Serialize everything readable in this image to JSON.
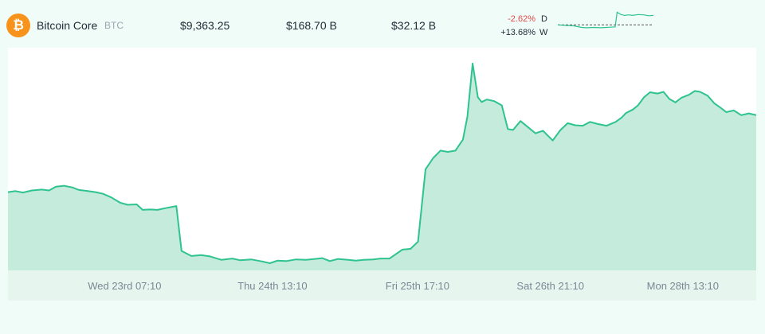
{
  "coin": {
    "name": "Bitcoin Core",
    "symbol": "BTC",
    "icon": "bitcoin-icon",
    "icon_glyph": "₿",
    "icon_color": "#f7931a"
  },
  "stats": {
    "price": "$9,363.25",
    "market_cap": "$168.70 B",
    "volume": "$32.12 B"
  },
  "changes": {
    "day_value": "-2.62%",
    "day_label": "D",
    "day_color": "#e04a4a",
    "week_value": "+13.68%",
    "week_label": "W",
    "week_color": "#1f2a37"
  },
  "colors": {
    "line": "#2ec38f",
    "fill": "#c4ebdc",
    "axis_band": "#e6f6ef",
    "tick_text": "#7b8794"
  },
  "chart_data": {
    "type": "area",
    "title": "",
    "xlabel": "",
    "ylabel": "",
    "x_ticks": [
      "Wed 23rd 07:10",
      "Thu 24th 13:10",
      "Fri 25th 17:10",
      "Sat 26th 21:10",
      "Mon 28th 13:10"
    ],
    "x_tick_pos": [
      0.205,
      0.4,
      0.59,
      0.77,
      0.95
    ],
    "ylim": [
      0,
      100
    ],
    "y_axis_labels": "none",
    "grid": false,
    "points": [
      [
        0.0,
        37.0
      ],
      [
        0.01,
        37.5
      ],
      [
        0.02,
        36.8
      ],
      [
        0.032,
        37.8
      ],
      [
        0.045,
        38.2
      ],
      [
        0.055,
        37.8
      ],
      [
        0.064,
        39.6
      ],
      [
        0.075,
        40.0
      ],
      [
        0.086,
        39.2
      ],
      [
        0.095,
        38.0
      ],
      [
        0.105,
        37.6
      ],
      [
        0.117,
        37.0
      ],
      [
        0.127,
        36.2
      ],
      [
        0.138,
        34.5
      ],
      [
        0.15,
        32.0
      ],
      [
        0.16,
        31.0
      ],
      [
        0.172,
        31.2
      ],
      [
        0.18,
        28.6
      ],
      [
        0.19,
        28.8
      ],
      [
        0.2,
        28.6
      ],
      [
        0.21,
        29.4
      ],
      [
        0.225,
        30.4
      ],
      [
        0.232,
        9.2
      ],
      [
        0.245,
        6.8
      ],
      [
        0.258,
        7.2
      ],
      [
        0.27,
        6.6
      ],
      [
        0.285,
        5.0
      ],
      [
        0.3,
        5.6
      ],
      [
        0.31,
        4.8
      ],
      [
        0.325,
        5.2
      ],
      [
        0.34,
        4.2
      ],
      [
        0.35,
        3.4
      ],
      [
        0.36,
        4.6
      ],
      [
        0.372,
        4.4
      ],
      [
        0.385,
        5.2
      ],
      [
        0.398,
        5.0
      ],
      [
        0.41,
        5.4
      ],
      [
        0.42,
        5.8
      ],
      [
        0.43,
        4.4
      ],
      [
        0.441,
        5.4
      ],
      [
        0.455,
        5.0
      ],
      [
        0.465,
        4.6
      ],
      [
        0.475,
        5.0
      ],
      [
        0.488,
        5.2
      ],
      [
        0.498,
        5.6
      ],
      [
        0.51,
        5.6
      ],
      [
        0.518,
        7.6
      ],
      [
        0.527,
        9.8
      ],
      [
        0.538,
        10.2
      ],
      [
        0.548,
        13.6
      ],
      [
        0.558,
        47.8
      ],
      [
        0.568,
        53.0
      ],
      [
        0.578,
        56.6
      ],
      [
        0.588,
        56.0
      ],
      [
        0.598,
        56.6
      ],
      [
        0.608,
        61.8
      ],
      [
        0.614,
        72.6
      ],
      [
        0.621,
        97.8
      ],
      [
        0.628,
        81.8
      ],
      [
        0.633,
        79.6
      ],
      [
        0.64,
        80.8
      ],
      [
        0.65,
        80.0
      ],
      [
        0.66,
        78.0
      ],
      [
        0.668,
        66.8
      ],
      [
        0.675,
        66.4
      ],
      [
        0.685,
        70.6
      ],
      [
        0.696,
        67.4
      ],
      [
        0.705,
        64.8
      ],
      [
        0.715,
        66.0
      ],
      [
        0.728,
        61.4
      ],
      [
        0.738,
        66.2
      ],
      [
        0.748,
        69.6
      ],
      [
        0.758,
        68.6
      ],
      [
        0.768,
        68.4
      ],
      [
        0.778,
        70.2
      ],
      [
        0.788,
        69.2
      ],
      [
        0.8,
        68.4
      ],
      [
        0.812,
        70.2
      ],
      [
        0.82,
        72.2
      ],
      [
        0.826,
        74.4
      ],
      [
        0.835,
        76.0
      ],
      [
        0.842,
        78.0
      ],
      [
        0.85,
        81.8
      ],
      [
        0.858,
        84.2
      ],
      [
        0.868,
        83.6
      ],
      [
        0.876,
        84.4
      ],
      [
        0.884,
        81.0
      ],
      [
        0.892,
        79.4
      ],
      [
        0.9,
        81.6
      ],
      [
        0.91,
        83.0
      ],
      [
        0.918,
        84.8
      ],
      [
        0.925,
        84.4
      ],
      [
        0.935,
        82.6
      ],
      [
        0.944,
        79.0
      ],
      [
        0.952,
        77.0
      ],
      [
        0.96,
        74.8
      ],
      [
        0.97,
        75.6
      ],
      [
        0.98,
        73.4
      ],
      [
        0.99,
        74.2
      ],
      [
        1.0,
        73.4
      ]
    ],
    "sparkline": {
      "type": "line",
      "ylim": [
        0,
        100
      ],
      "baseline": 52,
      "points": [
        [
          0.0,
          52
        ],
        [
          0.08,
          50
        ],
        [
          0.16,
          49
        ],
        [
          0.25,
          43
        ],
        [
          0.3,
          42
        ],
        [
          0.38,
          43
        ],
        [
          0.45,
          42
        ],
        [
          0.55,
          44
        ],
        [
          0.6,
          45
        ],
        [
          0.62,
          96
        ],
        [
          0.66,
          88
        ],
        [
          0.7,
          85
        ],
        [
          0.74,
          87
        ],
        [
          0.78,
          85
        ],
        [
          0.84,
          88
        ],
        [
          0.9,
          87
        ],
        [
          0.95,
          84
        ],
        [
          1.0,
          85
        ]
      ]
    }
  }
}
